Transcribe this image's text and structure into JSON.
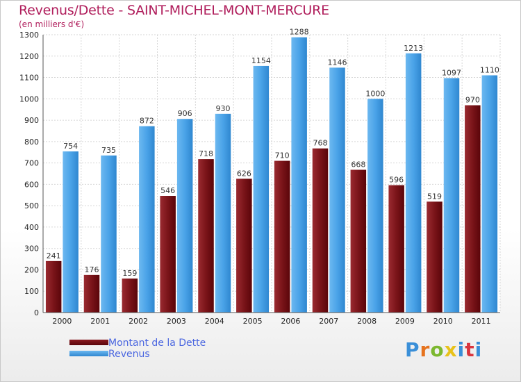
{
  "header": {
    "title": "Revenus/Dette - SAINT-MICHEL-MONT-MERCURE",
    "subtitle": "(en milliers d'€)"
  },
  "legend": {
    "items": [
      {
        "label": "Montant de la Dette",
        "color": "#6b0a12"
      },
      {
        "label": "Revenus",
        "color": "#4aa3e8"
      }
    ]
  },
  "logo": {
    "text": "Proxiti",
    "colors": [
      "#3a8fd8",
      "#e6731e",
      "#7cb82f",
      "#e8c21a",
      "#3a8fd8",
      "#d9353e",
      "#3a8fd8"
    ]
  },
  "chart_data": {
    "type": "bar",
    "title": "Revenus/Dette - SAINT-MICHEL-MONT-MERCURE",
    "ylabel": "(en milliers d'€)",
    "categories": [
      "2000",
      "2001",
      "2002",
      "2003",
      "2004",
      "2005",
      "2006",
      "2007",
      "2008",
      "2009",
      "2010",
      "2011"
    ],
    "series": [
      {
        "name": "Montant de la Dette",
        "color": "#6b0a12",
        "values": [
          241,
          176,
          159,
          546,
          718,
          626,
          710,
          768,
          668,
          596,
          519,
          970
        ]
      },
      {
        "name": "Revenus",
        "color": "#4aa3e8",
        "values": [
          754,
          735,
          872,
          906,
          930,
          1154,
          1288,
          1146,
          1000,
          1213,
          1097,
          1110
        ]
      }
    ],
    "ylim": [
      0,
      1300
    ],
    "yticks": [
      0,
      100,
      200,
      300,
      400,
      500,
      600,
      700,
      800,
      900,
      1000,
      1100,
      1200,
      1300
    ],
    "grid": true,
    "legend_position": "bottom-left"
  }
}
